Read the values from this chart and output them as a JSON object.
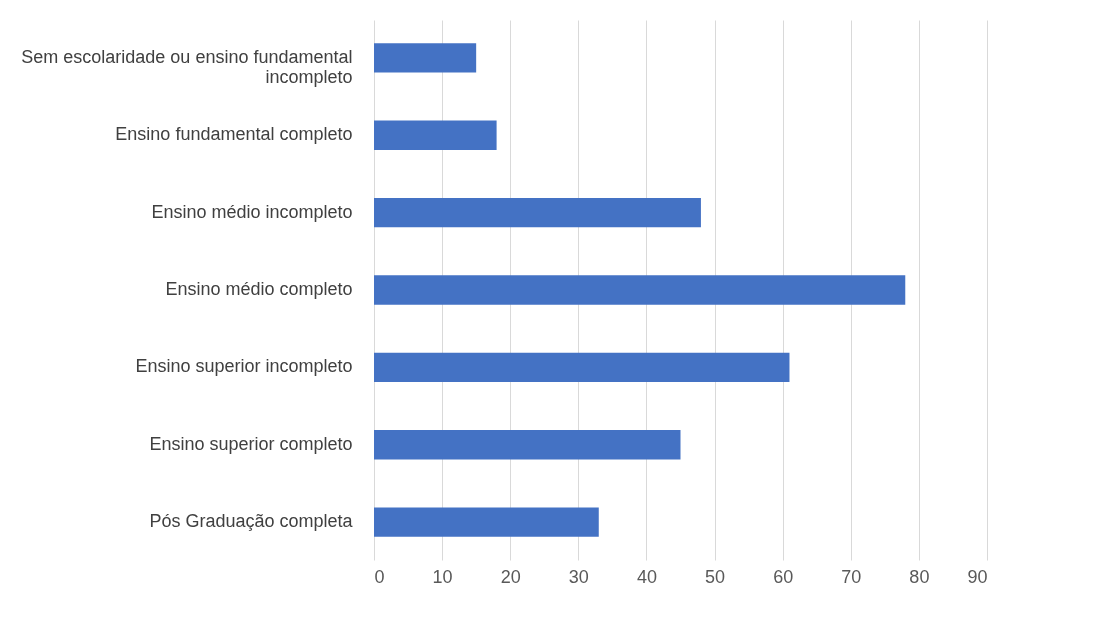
{
  "chart_data": {
    "type": "bar",
    "orientation": "horizontal",
    "categories": [
      "Sem escolaridade ou ensino fundamental incompleto",
      "Ensino fundamental completo",
      "Ensino médio incompleto",
      "Ensino médio completo",
      "Ensino superior incompleto",
      "Ensino superior completo",
      "Pós Graduação completa"
    ],
    "values": [
      15,
      18,
      48,
      78,
      61,
      45,
      33
    ],
    "color": "#4472c4",
    "xlim": [
      0,
      90
    ],
    "xticks": [
      0,
      10,
      20,
      30,
      40,
      50,
      60,
      70,
      80,
      90
    ],
    "grid": "x"
  }
}
